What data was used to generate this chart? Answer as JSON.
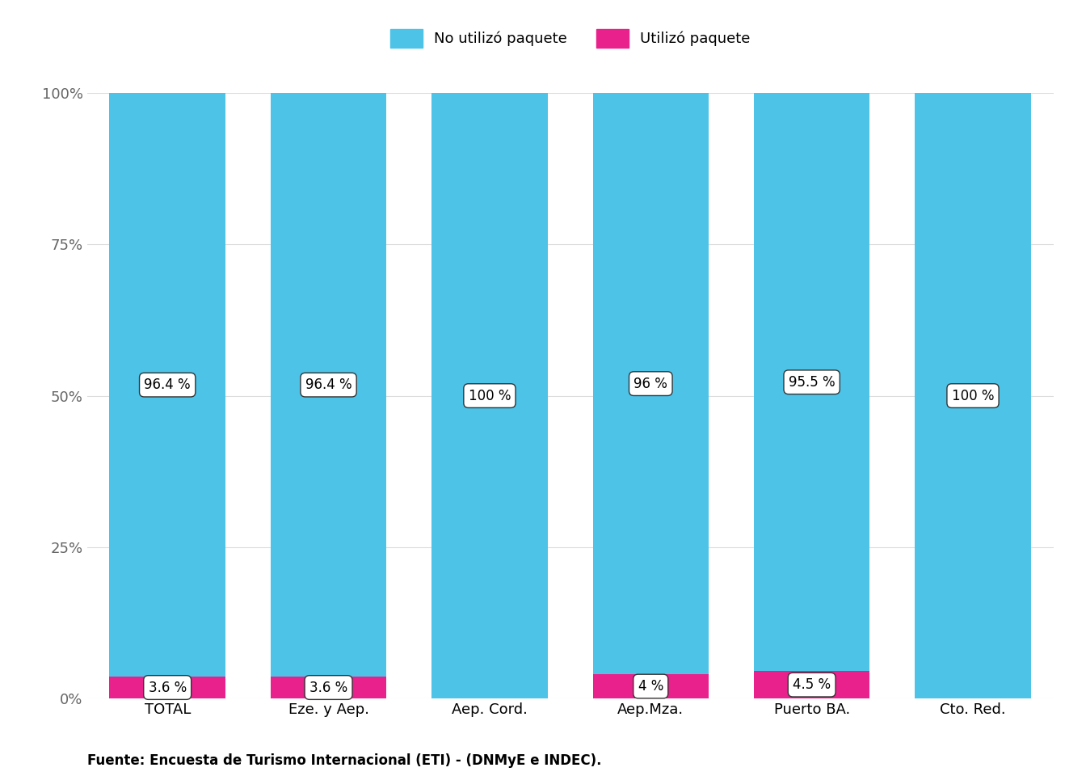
{
  "categories": [
    "TOTAL",
    "Eze. y Aep.",
    "Aep. Cord.",
    "Aep.Mza.",
    "Puerto BA.",
    "Cto. Red."
  ],
  "no_paquete": [
    96.4,
    96.4,
    100.0,
    96.0,
    95.5,
    100.0
  ],
  "si_paquete": [
    3.6,
    3.6,
    0.0,
    4.0,
    4.5,
    0.0
  ],
  "no_paquete_labels": [
    "96.4 %",
    "96.4 %",
    "100 %",
    "96 %",
    "95.5 %",
    "100 %"
  ],
  "si_paquete_labels": [
    "3.6 %",
    "3.6 %",
    "",
    "4 %",
    "4.5 %",
    ""
  ],
  "color_no_paquete": "#4DC3E8",
  "color_si_paquete": "#E8218C",
  "legend_no_paquete": "No utilizó paquete",
  "legend_si_paquete": "Utilizó paquete",
  "ylabel_ticks": [
    "0%",
    "25%",
    "50%",
    "75%",
    "100%"
  ],
  "ytick_vals": [
    0,
    25,
    50,
    75,
    100
  ],
  "footnote": "Fuente: Encuesta de Turismo Internacional (ETI) - (DNMyE e INDEC).",
  "background_color": "#FFFFFF",
  "bar_width": 0.72,
  "label_fontsize": 12,
  "tick_fontsize": 13,
  "legend_fontsize": 13,
  "footnote_fontsize": 12
}
